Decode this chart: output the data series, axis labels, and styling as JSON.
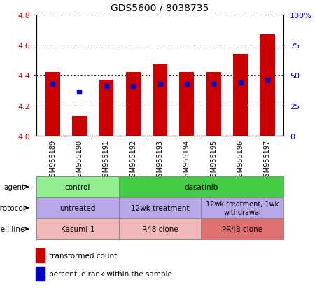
{
  "title": "GDS5600 / 8038735",
  "samples": [
    "GSM955189",
    "GSM955190",
    "GSM955191",
    "GSM955192",
    "GSM955193",
    "GSM955194",
    "GSM955195",
    "GSM955196",
    "GSM955197"
  ],
  "bar_values": [
    4.42,
    4.13,
    4.37,
    4.42,
    4.47,
    4.42,
    4.42,
    4.54,
    4.67
  ],
  "bar_base": 4.0,
  "percentile_values": [
    4.34,
    4.29,
    4.33,
    4.33,
    4.34,
    4.34,
    4.34,
    4.35,
    4.37
  ],
  "bar_color": "#cc0000",
  "percentile_color": "#0000cc",
  "ylim": [
    4.0,
    4.8
  ],
  "yticks_left": [
    4.0,
    4.2,
    4.4,
    4.6,
    4.8
  ],
  "yticks_right": [
    0,
    25,
    50,
    75,
    100
  ],
  "ytick_labels_right": [
    "0",
    "25",
    "50",
    "75",
    "100%"
  ],
  "agent_groups": [
    {
      "label": "control",
      "start": 0,
      "end": 3,
      "color": "#90ee90"
    },
    {
      "label": "dasatinib",
      "start": 3,
      "end": 9,
      "color": "#44cc44"
    }
  ],
  "protocol_groups": [
    {
      "label": "untreated",
      "start": 0,
      "end": 3,
      "color": "#b8a8e8"
    },
    {
      "label": "12wk treatment",
      "start": 3,
      "end": 6,
      "color": "#b8a8e8"
    },
    {
      "label": "12wk treatment, 1wk\nwithdrawal",
      "start": 6,
      "end": 9,
      "color": "#b8a8e8"
    }
  ],
  "cellline_groups": [
    {
      "label": "Kasumi-1",
      "start": 0,
      "end": 3,
      "color": "#f0b8b8"
    },
    {
      "label": "R48 clone",
      "start": 3,
      "end": 6,
      "color": "#f0b8b8"
    },
    {
      "label": "PR48 clone",
      "start": 6,
      "end": 9,
      "color": "#e07070"
    }
  ],
  "row_labels": [
    "agent",
    "protocol",
    "cell line"
  ],
  "legend_bar_label": "transformed count",
  "legend_pct_label": "percentile rank within the sample",
  "tick_label_color_left": "#cc0000",
  "tick_label_color_right": "#0000cc",
  "xtick_bg_color": "#d0d0d0"
}
